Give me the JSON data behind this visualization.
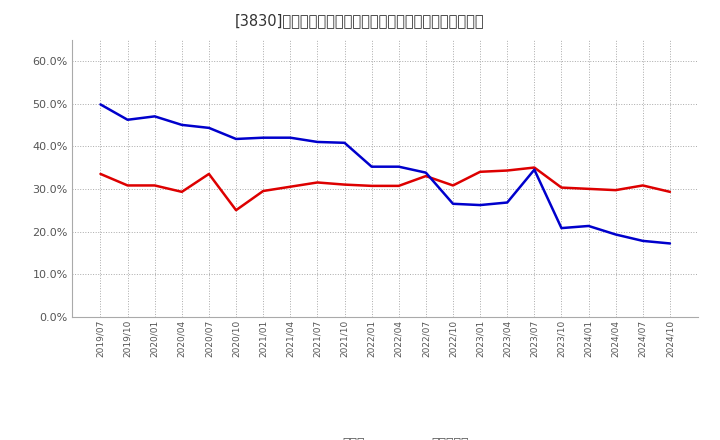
{
  "title": "[3830]　現預金、有利子負債の総資産に対する比率の推移",
  "x_labels": [
    "2019/07",
    "2019/10",
    "2020/01",
    "2020/04",
    "2020/07",
    "2020/10",
    "2021/01",
    "2021/04",
    "2021/07",
    "2021/10",
    "2022/01",
    "2022/04",
    "2022/07",
    "2022/10",
    "2023/01",
    "2023/04",
    "2023/07",
    "2023/10",
    "2024/01",
    "2024/04",
    "2024/07",
    "2024/10"
  ],
  "cash": [
    0.335,
    0.308,
    0.308,
    0.293,
    0.335,
    0.25,
    0.295,
    0.305,
    0.315,
    0.31,
    0.307,
    0.307,
    0.33,
    0.308,
    0.34,
    0.343,
    0.35,
    0.303,
    0.3,
    0.297,
    0.308,
    0.293
  ],
  "debt": [
    0.498,
    0.462,
    0.47,
    0.45,
    0.443,
    0.417,
    0.42,
    0.42,
    0.41,
    0.408,
    0.352,
    0.352,
    0.338,
    0.265,
    0.262,
    0.268,
    0.345,
    0.208,
    0.213,
    0.193,
    0.178,
    0.172
  ],
  "cash_color": "#dd0000",
  "debt_color": "#0000cc",
  "bg_color": "#ffffff",
  "grid_color": "#aaaaaa",
  "title_color": "#333333",
  "legend_cash": "現預金",
  "legend_debt": "有利子負債",
  "line_width": 1.8,
  "ylim": [
    0.0,
    0.65
  ],
  "yticks": [
    0.0,
    0.1,
    0.2,
    0.3,
    0.4,
    0.5,
    0.6
  ]
}
